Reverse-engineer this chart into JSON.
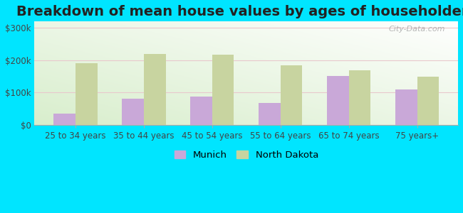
{
  "title": "Breakdown of mean house values by ages of householders",
  "categories": [
    "25 to 34 years",
    "35 to 44 years",
    "45 to 54 years",
    "55 to 64 years",
    "65 to 74 years",
    "75 years+"
  ],
  "munich_values": [
    35000,
    80000,
    87000,
    67000,
    150000,
    110000
  ],
  "nd_values": [
    190000,
    220000,
    218000,
    185000,
    168000,
    148000
  ],
  "munich_color": "#c9a8d8",
  "nd_color": "#c8d4a0",
  "background_color": "#00e5ff",
  "yticks": [
    0,
    100000,
    200000,
    300000
  ],
  "ytick_labels": [
    "$0",
    "$100k",
    "$200k",
    "$300k"
  ],
  "ylim": [
    0,
    320000
  ],
  "legend_munich": "Munich",
  "legend_nd": "North Dakota",
  "watermark": "City-Data.com",
  "title_fontsize": 14,
  "tick_fontsize": 8.5,
  "legend_fontsize": 9.5
}
